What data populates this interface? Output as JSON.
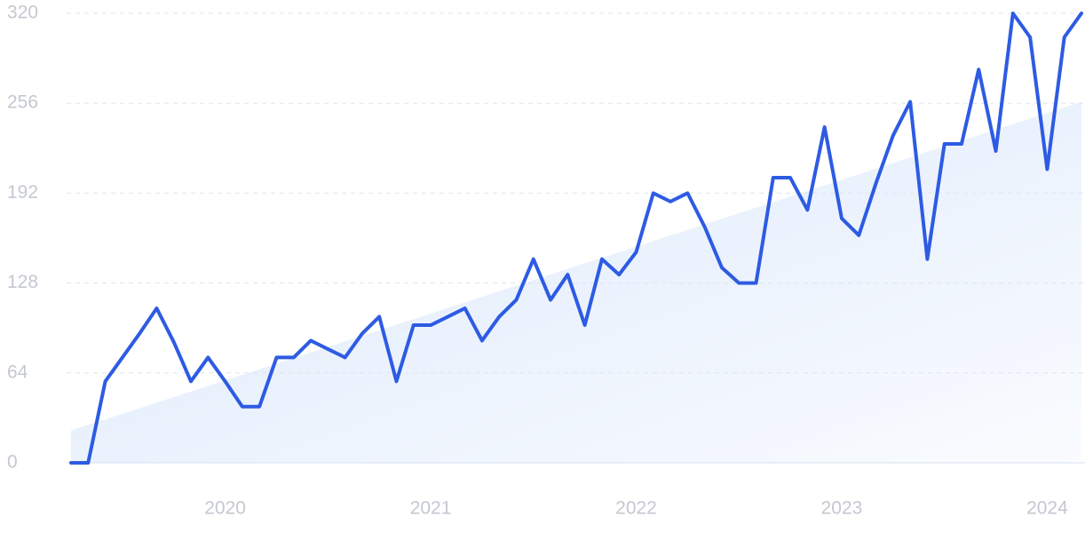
{
  "chart_data": {
    "type": "line",
    "categories": [
      null,
      null,
      null,
      null,
      null,
      null,
      null,
      null,
      null,
      "2020",
      null,
      null,
      null,
      null,
      null,
      null,
      null,
      null,
      null,
      null,
      null,
      "2021",
      null,
      null,
      null,
      null,
      null,
      null,
      null,
      null,
      null,
      null,
      null,
      "2022",
      null,
      null,
      null,
      null,
      null,
      null,
      null,
      null,
      null,
      null,
      null,
      "2023",
      null,
      null,
      null,
      null,
      null,
      null,
      null,
      null,
      null,
      null,
      null,
      "2024",
      null,
      null
    ],
    "values": [
      0,
      0,
      58,
      75,
      92,
      110,
      86,
      58,
      75,
      58,
      40,
      40,
      75,
      75,
      87,
      81,
      75,
      92,
      104,
      58,
      98,
      98,
      104,
      110,
      87,
      104,
      116,
      145,
      116,
      134,
      98,
      145,
      134,
      150,
      192,
      186,
      192,
      168,
      139,
      128,
      128,
      203,
      203,
      180,
      239,
      174,
      162,
      199,
      233,
      257,
      145,
      227,
      227,
      280,
      222,
      320,
      303,
      209,
      303,
      320
    ],
    "color": "#2d5be3",
    "trend": [
      23,
      257
    ],
    "trend_color": "#dbe8fb",
    "ylim": [
      0,
      320
    ],
    "yticks": [
      0,
      64,
      128,
      192,
      256,
      320
    ],
    "grid": true
  }
}
